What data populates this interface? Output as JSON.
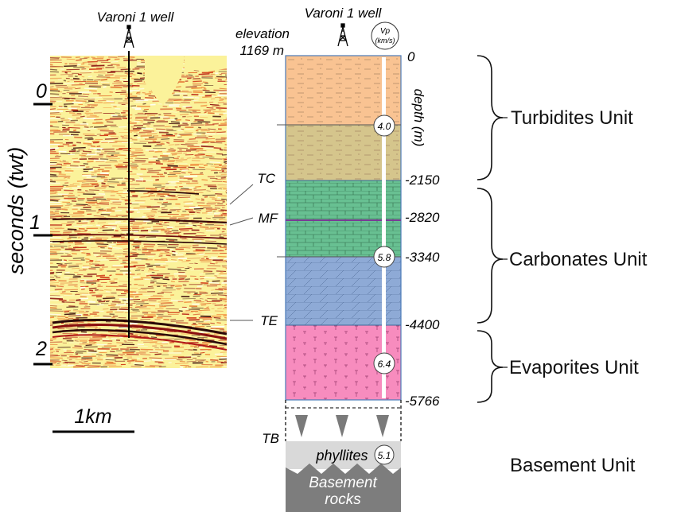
{
  "seismic": {
    "well_title": "Varoni 1 well",
    "y_axis_label": "seconds (twt)",
    "time_ticks": [
      "0",
      "1",
      "2"
    ],
    "scale_label": "1km"
  },
  "column": {
    "well_title": "Varoni 1 well",
    "elevation_line1": "elevation",
    "elevation_line2": "1169 m",
    "vp_line1": "Vp",
    "vp_line2": "(km/s)",
    "depth_axis_label": "depth (m)",
    "depth_top": "0",
    "depths": [
      "-2150",
      "-2820",
      "-3340",
      "-4400",
      "-5766"
    ],
    "horizons": [
      "TC",
      "MF",
      "TE",
      "TB"
    ],
    "velocities": [
      "4.0",
      "5.8",
      "6.4",
      "5.1"
    ],
    "basement_text1": "phyllites",
    "basement_text2_line1": "Basement",
    "basement_text2_line2": "rocks"
  },
  "units": [
    "Turbidites Unit",
    "Carbonates Unit",
    "Evaporites Unit",
    "Basement Unit"
  ],
  "colors": {
    "turbidites_upper": "#f9c392",
    "turbidites_lower": "#d5c58c",
    "carbonates_upper": "#68c092",
    "carbonates_lower": "#8eaad6",
    "evaporites": "#f78cbe",
    "phyllites": "#d9d9d9",
    "basement_rocks": "#7d7d7d",
    "seismic_background": "#fbf29a"
  }
}
